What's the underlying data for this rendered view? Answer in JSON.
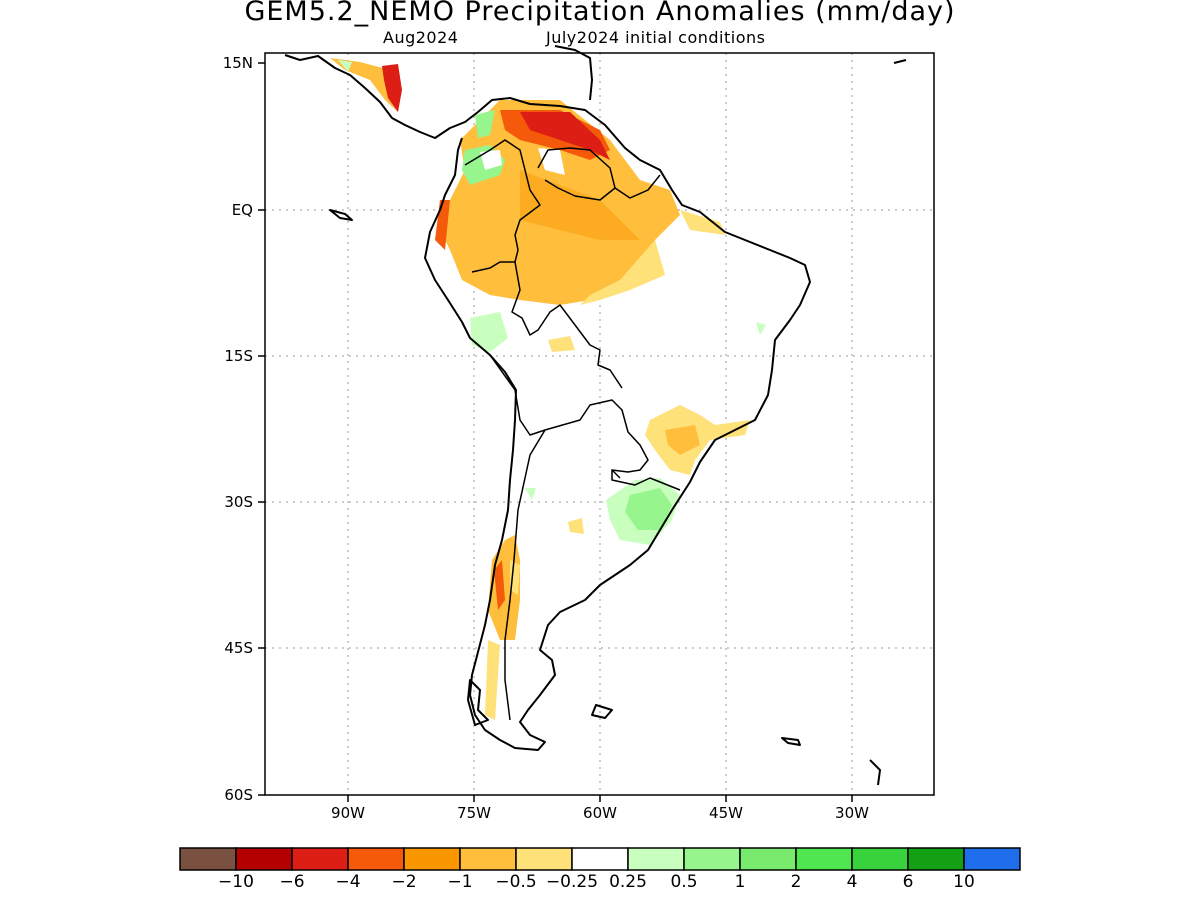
{
  "title": "GEM5.2_NEMO Precipitation Anomalies (mm/day)",
  "subtitle_left": "Aug2024",
  "subtitle_right": "July2024 initial conditions",
  "lat_labels": [
    "15N",
    "EQ",
    "15S",
    "30S",
    "45S",
    "60S"
  ],
  "lon_labels": [
    "90W",
    "75W",
    "60W",
    "45W",
    "30W"
  ],
  "colorbar": {
    "colors": [
      "#7a5040",
      "#b40000",
      "#dc1e14",
      "#f55a0a",
      "#fa9600",
      "#ffbe3c",
      "#ffe17a",
      "#ffffff",
      "#c8ffbe",
      "#96f58c",
      "#78eb6e",
      "#50e650",
      "#37d23c",
      "#14a014",
      "#1e6eeb"
    ],
    "labels": [
      "−10",
      "−6",
      "−4",
      "−2",
      "−1",
      "−0.5",
      "−0.25",
      "0.25",
      "0.5",
      "1",
      "2",
      "4",
      "6",
      "10"
    ]
  }
}
